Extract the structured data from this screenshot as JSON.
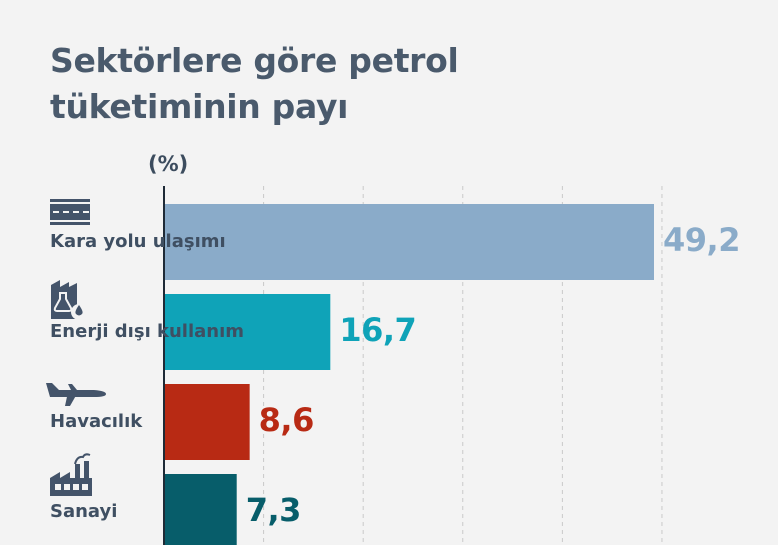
{
  "chart_data": {
    "type": "bar",
    "orientation": "horizontal",
    "title": "Sektörlere göre petrol tüketiminin payı",
    "unit_label": "(%)",
    "categories": [
      "Kara yolu ulaşımı",
      "Enerji dışı kullanım",
      "Havacılık",
      "Sanayi"
    ],
    "values": [
      49.2,
      16.7,
      8.6,
      7.3
    ],
    "value_labels": [
      "49,2",
      "16,7",
      "8,6",
      "7,3"
    ],
    "colors": [
      "#8aabc9",
      "#0fa3b8",
      "#b82a14",
      "#075d6a"
    ],
    "icons": [
      "road-icon",
      "chemical-flask-icon",
      "airplane-icon",
      "factory-icon"
    ],
    "xlim": [
      0,
      55
    ],
    "grid": true
  }
}
